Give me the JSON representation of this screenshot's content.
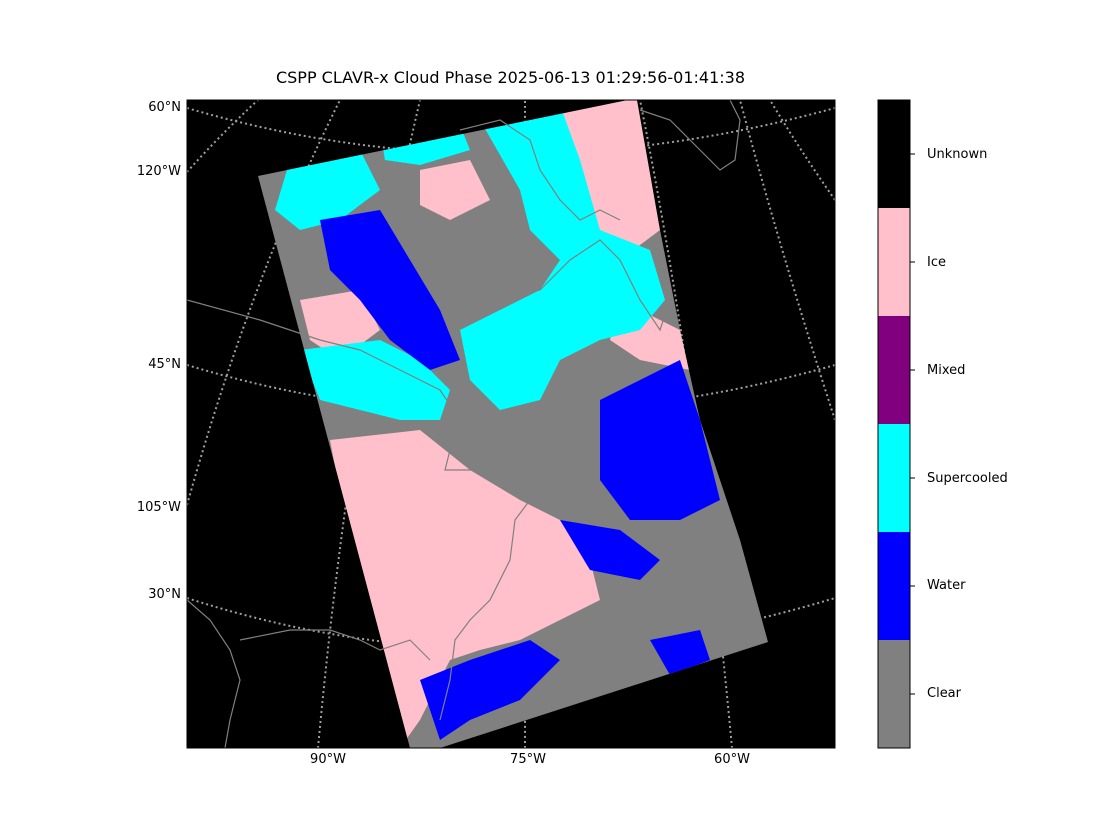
{
  "title": "CSPP CLAVR-x Cloud Phase 2025-06-13 01:29:56-01:41:38",
  "lat_labels": [
    "60°N",
    "45°N",
    "30°N"
  ],
  "lon_labels_left": [
    "120°W",
    "105°W"
  ],
  "lon_labels_bottom": [
    "90°W",
    "75°W",
    "60°W"
  ],
  "colorbar": {
    "categories": [
      {
        "label": "Unknown",
        "color": "#000000"
      },
      {
        "label": "Ice",
        "color": "#FFC0CB"
      },
      {
        "label": "Mixed",
        "color": "#800080"
      },
      {
        "label": "Supercooled",
        "color": "#00FFFF"
      },
      {
        "label": "Water",
        "color": "#0000FF"
      },
      {
        "label": "Clear",
        "color": "#808080"
      }
    ]
  },
  "colors": {
    "background": "#000000",
    "coastline": "#808080",
    "graticule": "#a0a0a0"
  }
}
